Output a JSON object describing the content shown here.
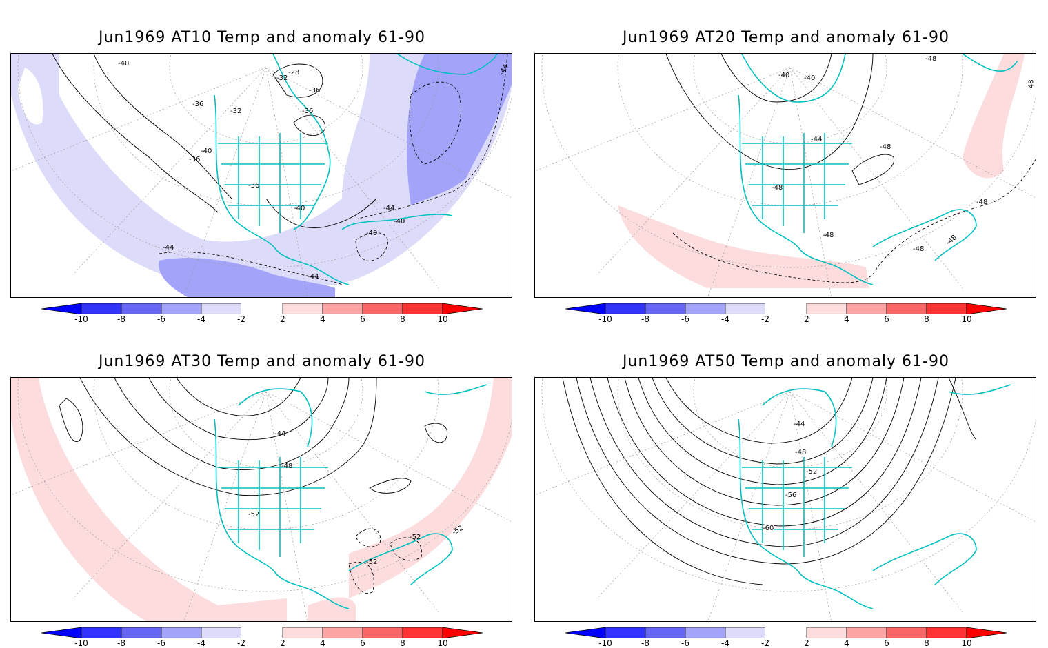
{
  "panels": [
    {
      "title": "Jun1969 AT10 Temp and anomaly 61-90",
      "contour_labels": [
        "-40",
        "-28",
        "-32",
        "-36",
        "-36",
        "-36",
        "-32",
        "-36",
        "-40",
        "-36",
        "-40",
        "-44",
        "-40",
        "-40",
        "-44",
        "-44",
        "-44"
      ]
    },
    {
      "title": "Jun1969 AT20 Temp and anomaly 61-90",
      "contour_labels": [
        "-40",
        "-40",
        "-44",
        "-48",
        "-48",
        "-48",
        "-48",
        "-48",
        "-48",
        "-48",
        "-48"
      ]
    },
    {
      "title": "Jun1969 AT30 Temp and anomaly 61-90",
      "contour_labels": [
        "-44",
        "-48",
        "-52",
        "-52",
        "-52",
        "-52"
      ]
    },
    {
      "title": "Jun1969 AT50 Temp and anomaly 61-90",
      "contour_labels": [
        "-44",
        "-48",
        "-52",
        "-56",
        "-60"
      ]
    }
  ],
  "colorbar": {
    "labels": [
      "-10",
      "-8",
      "-6",
      "-4",
      "-2",
      "2",
      "4",
      "6",
      "8",
      "10"
    ],
    "colors": [
      "#0000ff",
      "#3333ff",
      "#6666f5",
      "#a3a3fa",
      "#dcdcfa",
      "#ffffff",
      "#fcdcdc",
      "#fca3a3",
      "#fa6666",
      "#ff3333",
      "#ff0000"
    ]
  },
  "style": {
    "coastline_color": "#00c0c0",
    "negative_anomaly_fill": "#dcdcfa",
    "strong_negative_fill": "#a3a3fa",
    "positive_anomaly_fill": "#fcdcdc"
  }
}
